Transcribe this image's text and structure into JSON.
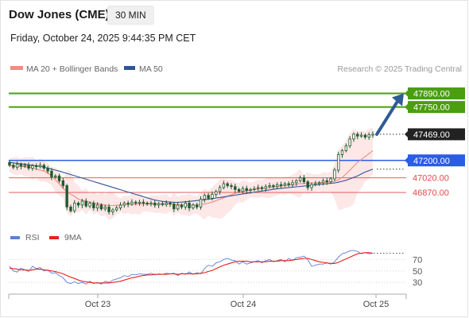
{
  "header": {
    "title": "Dow Jones (CME)",
    "timeframe": "30 MIN",
    "datetime": "Friday, October 24, 2025 9:44:35 PM CET"
  },
  "legend": {
    "items": [
      {
        "label": "MA 20 + Bollinger Bands",
        "color": "#f28b82"
      },
      {
        "label": "MA 50",
        "color": "#2f5597"
      }
    ],
    "credit": "Research © 2025 Trading Central"
  },
  "rsi_legend": {
    "items": [
      {
        "label": "RSI",
        "color": "#5b7fd6"
      },
      {
        "label": "9MA",
        "color": "#e8201b"
      }
    ]
  },
  "colors": {
    "resistance": "#4a9e0f",
    "support": "#2b5ce6",
    "pivot_red": "#e24a4a",
    "candle": "#1e5b2e",
    "band_fill": "#fde3e3",
    "arrow": "#2f5b96",
    "last_price_badge": "#222222"
  },
  "chart_data": [
    {
      "type": "candlestick",
      "title": "Dow Jones (CME)",
      "timeframe": "30 MIN",
      "x_tick_labels": [
        "Oct 23",
        "Oct 24",
        "Oct 25"
      ],
      "ylim": [
        46600,
        48050
      ],
      "levels": [
        {
          "value": 47890.0,
          "label": "47890.00",
          "kind": "resistance"
        },
        {
          "value": 47750.0,
          "label": "47750.00",
          "kind": "resistance"
        },
        {
          "value": 47469.0,
          "label": "47469.00",
          "kind": "last_price"
        },
        {
          "value": 47200.0,
          "label": "47200.00",
          "kind": "support"
        },
        {
          "value": 47020.0,
          "label": "47020.00",
          "kind": "pivot"
        },
        {
          "value": 46870.0,
          "label": "46870.00",
          "kind": "pivot"
        }
      ],
      "projection": {
        "from": 47469,
        "to": 47890,
        "direction": "up"
      },
      "candles": [
        {
          "o": 47180,
          "c": 47150
        },
        {
          "o": 47150,
          "c": 47130
        },
        {
          "o": 47130,
          "c": 47160
        },
        {
          "o": 47160,
          "c": 47140
        },
        {
          "o": 47140,
          "c": 47150
        },
        {
          "o": 47150,
          "c": 47120
        },
        {
          "o": 47120,
          "c": 47145
        },
        {
          "o": 47145,
          "c": 47135
        },
        {
          "o": 47135,
          "c": 47150
        },
        {
          "o": 47150,
          "c": 47120
        },
        {
          "o": 47120,
          "c": 47090
        },
        {
          "o": 47090,
          "c": 47030
        },
        {
          "o": 47030,
          "c": 47040
        },
        {
          "o": 47040,
          "c": 46990
        },
        {
          "o": 46990,
          "c": 46940
        },
        {
          "o": 46940,
          "c": 46720
        },
        {
          "o": 46720,
          "c": 46680
        },
        {
          "o": 46680,
          "c": 46760
        },
        {
          "o": 46760,
          "c": 46740
        },
        {
          "o": 46740,
          "c": 46780
        },
        {
          "o": 46780,
          "c": 46730
        },
        {
          "o": 46730,
          "c": 46760
        },
        {
          "o": 46760,
          "c": 46710
        },
        {
          "o": 46710,
          "c": 46740
        },
        {
          "o": 46740,
          "c": 46700
        },
        {
          "o": 46700,
          "c": 46720
        },
        {
          "o": 46720,
          "c": 46670
        },
        {
          "o": 46670,
          "c": 46690
        },
        {
          "o": 46690,
          "c": 46710
        },
        {
          "o": 46710,
          "c": 46740
        },
        {
          "o": 46740,
          "c": 46760
        },
        {
          "o": 46760,
          "c": 46750
        },
        {
          "o": 46750,
          "c": 46770
        },
        {
          "o": 46770,
          "c": 46760
        },
        {
          "o": 46760,
          "c": 46770
        },
        {
          "o": 46770,
          "c": 46760
        },
        {
          "o": 46760,
          "c": 46750
        },
        {
          "o": 46750,
          "c": 46760
        },
        {
          "o": 46760,
          "c": 46740
        },
        {
          "o": 46740,
          "c": 46755
        },
        {
          "o": 46755,
          "c": 46745
        },
        {
          "o": 46745,
          "c": 46760
        },
        {
          "o": 46760,
          "c": 46750
        },
        {
          "o": 46750,
          "c": 46700
        },
        {
          "o": 46700,
          "c": 46740
        },
        {
          "o": 46740,
          "c": 46720
        },
        {
          "o": 46720,
          "c": 46760
        },
        {
          "o": 46760,
          "c": 46710
        },
        {
          "o": 46710,
          "c": 46740
        },
        {
          "o": 46740,
          "c": 46720
        },
        {
          "o": 46720,
          "c": 46800
        },
        {
          "o": 46800,
          "c": 46840
        },
        {
          "o": 46840,
          "c": 46810
        },
        {
          "o": 46810,
          "c": 46850
        },
        {
          "o": 46850,
          "c": 46880
        },
        {
          "o": 46880,
          "c": 46920
        },
        {
          "o": 46920,
          "c": 46960
        },
        {
          "o": 46960,
          "c": 46940
        },
        {
          "o": 46940,
          "c": 46930
        },
        {
          "o": 46930,
          "c": 46900
        },
        {
          "o": 46900,
          "c": 46880
        },
        {
          "o": 46880,
          "c": 46910
        },
        {
          "o": 46910,
          "c": 46890
        },
        {
          "o": 46890,
          "c": 46900
        },
        {
          "o": 46900,
          "c": 46910
        },
        {
          "o": 46910,
          "c": 46920
        },
        {
          "o": 46920,
          "c": 46910
        },
        {
          "o": 46910,
          "c": 46930
        },
        {
          "o": 46930,
          "c": 46940
        },
        {
          "o": 46940,
          "c": 46930
        },
        {
          "o": 46930,
          "c": 46950
        },
        {
          "o": 46950,
          "c": 46945
        },
        {
          "o": 46945,
          "c": 46960
        },
        {
          "o": 46960,
          "c": 46950
        },
        {
          "o": 46950,
          "c": 46970
        },
        {
          "o": 46970,
          "c": 46990
        },
        {
          "o": 46990,
          "c": 47020
        },
        {
          "o": 47020,
          "c": 46980
        },
        {
          "o": 46980,
          "c": 46920
        },
        {
          "o": 46920,
          "c": 46950
        },
        {
          "o": 46950,
          "c": 46960
        },
        {
          "o": 46960,
          "c": 46970
        },
        {
          "o": 46970,
          "c": 46990
        },
        {
          "o": 46990,
          "c": 46980
        },
        {
          "o": 46980,
          "c": 47010
        },
        {
          "o": 47010,
          "c": 47100
        },
        {
          "o": 47100,
          "c": 47260
        },
        {
          "o": 47260,
          "c": 47300
        },
        {
          "o": 47300,
          "c": 47350
        },
        {
          "o": 47350,
          "c": 47420
        },
        {
          "o": 47420,
          "c": 47470
        },
        {
          "o": 47470,
          "c": 47450
        },
        {
          "o": 47450,
          "c": 47460
        },
        {
          "o": 47460,
          "c": 47440
        },
        {
          "o": 47440,
          "c": 47465
        },
        {
          "o": 47465,
          "c": 47470
        }
      ],
      "ma20": [
        47150,
        47145,
        47140,
        47140,
        47135,
        47130,
        47120,
        47110,
        47100,
        47090,
        47070,
        47040,
        47000,
        46960,
        46910,
        46880,
        46850,
        46830,
        46800,
        46790,
        46780,
        46770,
        46760,
        46755,
        46748,
        46740,
        46735,
        46735,
        46738,
        46740,
        46742,
        46745,
        46748,
        46750,
        46752,
        46752,
        46752,
        46752,
        46750,
        46750,
        46750,
        46750,
        46750,
        46748,
        46745,
        46742,
        46740,
        46740,
        46740,
        46742,
        46745,
        46750,
        46760,
        46770,
        46785,
        46800,
        46815,
        46830,
        46845,
        46860,
        46870,
        46880,
        46888,
        46895,
        46900,
        46905,
        46910,
        46915,
        46920,
        46925,
        46930,
        46935,
        46940,
        46945,
        46950,
        46955,
        46960,
        46962,
        46964,
        46966,
        46968,
        46970,
        46972,
        46975,
        46978,
        46985,
        47000,
        47025,
        47060,
        47100,
        47140,
        47180,
        47210,
        47240,
        47270,
        47300
      ],
      "ma50": [
        47180,
        47175,
        47170,
        47165,
        47160,
        47155,
        47150,
        47145,
        47140,
        47130,
        47120,
        47110,
        47100,
        47090,
        47078,
        47066,
        47054,
        47042,
        47030,
        47018,
        47006,
        46994,
        46982,
        46970,
        46958,
        46946,
        46934,
        46922,
        46910,
        46898,
        46886,
        46874,
        46862,
        46850,
        46838,
        46826,
        46814,
        46802,
        46792,
        46784,
        46778,
        46774,
        46770,
        46768,
        46768,
        46770,
        46774,
        46778,
        46782,
        46786,
        46790,
        46795,
        46800,
        46806,
        46812,
        46818,
        46824,
        46830,
        46836,
        46842,
        46848,
        46854,
        46860,
        46866,
        46872,
        46878,
        46884,
        46890,
        46896,
        46902,
        46908,
        46912,
        46916,
        46920,
        46924,
        46928,
        46932,
        46936,
        46940,
        46944,
        46948,
        46952,
        46956,
        46960,
        46964,
        46968,
        46975,
        46985,
        46995,
        47010,
        47025,
        47040,
        47060,
        47080,
        47095,
        47110
      ]
    },
    {
      "type": "line",
      "title": "RSI",
      "ylim": [
        15,
        90
      ],
      "y_tick_labels": [
        "70",
        "50",
        "30"
      ],
      "y_ticks": [
        70,
        50,
        30
      ],
      "series": [
        {
          "name": "RSI",
          "values": [
            58,
            50,
            48,
            55,
            52,
            49,
            58,
            54,
            56,
            50,
            52,
            46,
            47,
            42,
            38,
            30,
            28,
            31,
            28,
            30,
            27,
            32,
            28,
            30,
            27,
            32,
            30,
            34,
            36,
            38,
            42,
            40,
            44,
            43,
            45,
            44,
            44,
            46,
            43,
            45,
            44,
            46,
            45,
            46,
            42,
            46,
            44,
            48,
            44,
            47,
            45,
            54,
            60,
            58,
            64,
            66,
            70,
            72,
            69,
            68,
            62,
            66,
            62,
            64,
            66,
            68,
            64,
            68,
            70,
            66,
            68,
            70,
            66,
            72,
            68,
            73,
            74,
            76,
            70,
            58,
            60,
            62,
            62,
            64,
            62,
            66,
            74,
            80,
            82,
            85,
            86,
            84,
            80,
            82,
            80,
            81
          ]
        },
        {
          "name": "9MA",
          "values": [
            55,
            54,
            53,
            52,
            52,
            51,
            52,
            53,
            53,
            52,
            51,
            50,
            49,
            47,
            45,
            42,
            39,
            37,
            34,
            32,
            31,
            30,
            29,
            29,
            29,
            29,
            29,
            30,
            31,
            32,
            34,
            36,
            38,
            39,
            41,
            42,
            43,
            43,
            44,
            44,
            44,
            44,
            45,
            45,
            44,
            45,
            45,
            45,
            45,
            45,
            46,
            47,
            49,
            51,
            54,
            57,
            60,
            62,
            64,
            66,
            67,
            67,
            67,
            66,
            66,
            66,
            66,
            66,
            67,
            67,
            67,
            68,
            68,
            68,
            69,
            70,
            71,
            72,
            72,
            70,
            68,
            66,
            65,
            64,
            63,
            63,
            65,
            68,
            71,
            74,
            77,
            80,
            81,
            82,
            82,
            81
          ]
        }
      ]
    }
  ]
}
